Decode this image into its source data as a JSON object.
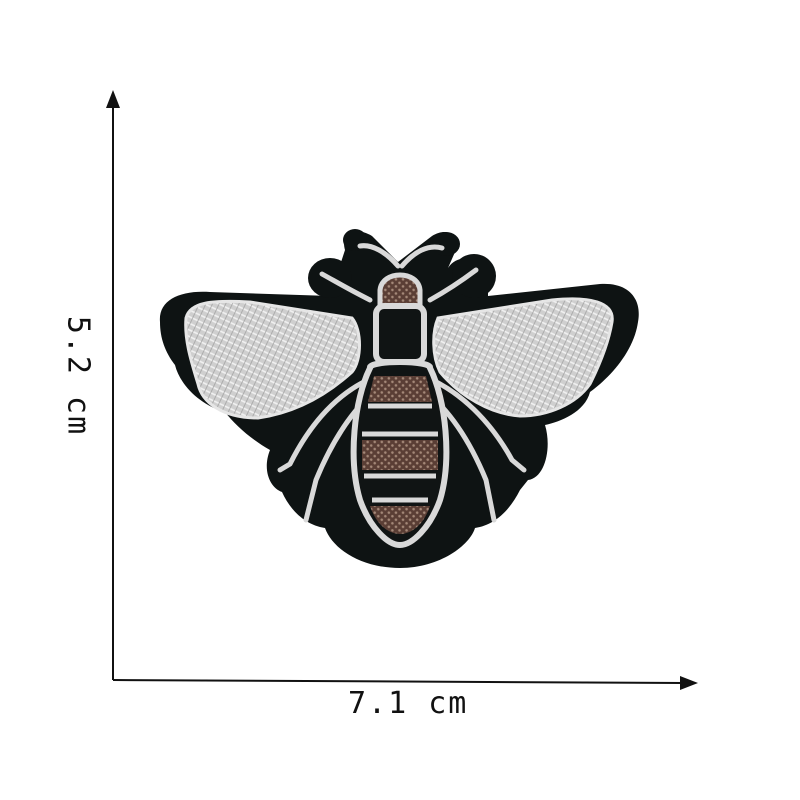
{
  "dimensions": {
    "width_label": "7.1 cm",
    "height_label": "5.2 cm"
  },
  "colors": {
    "felt": "#0e1313",
    "thread_silver": "#d4d4d4",
    "thread_shadow": "#8a8a8a",
    "thread_brown": "#6a4a3e",
    "axis": "#111111"
  },
  "subject": {
    "icon": "bee-patch-icon"
  }
}
